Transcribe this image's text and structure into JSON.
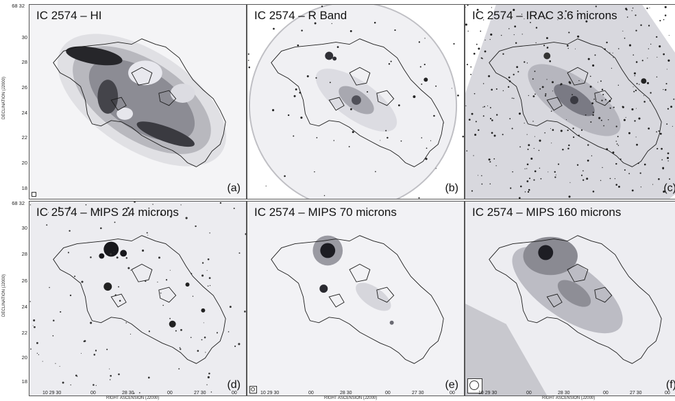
{
  "panels": [
    {
      "title": "IC 2574 – HI",
      "tag": "(a)"
    },
    {
      "title": "IC 2574 – R Band",
      "tag": "(b)"
    },
    {
      "title": "IC 2574 – IRAC 3.6 microns",
      "tag": "(c)"
    },
    {
      "title": "IC 2574 – MIPS 24 microns",
      "tag": "(d)"
    },
    {
      "title": "IC 2574 – MIPS 70 microns",
      "tag": "(e)"
    },
    {
      "title": "IC 2574 – MIPS 160 microns",
      "tag": "(f)"
    }
  ],
  "y_axis": {
    "label": "DECLINATION (J2000)",
    "top_tick": "68 32",
    "ticks": [
      "30",
      "28",
      "26",
      "24",
      "22",
      "20",
      "18"
    ]
  },
  "x_axis": {
    "label": "RIGHT ASCENSION (J2000)",
    "ticks": [
      "10 29 30",
      "00",
      "28 30",
      "00",
      "27 30",
      "00"
    ]
  },
  "colors": {
    "ink": "#111111",
    "contour": "#1a1a1a",
    "background": "#ffffff"
  }
}
